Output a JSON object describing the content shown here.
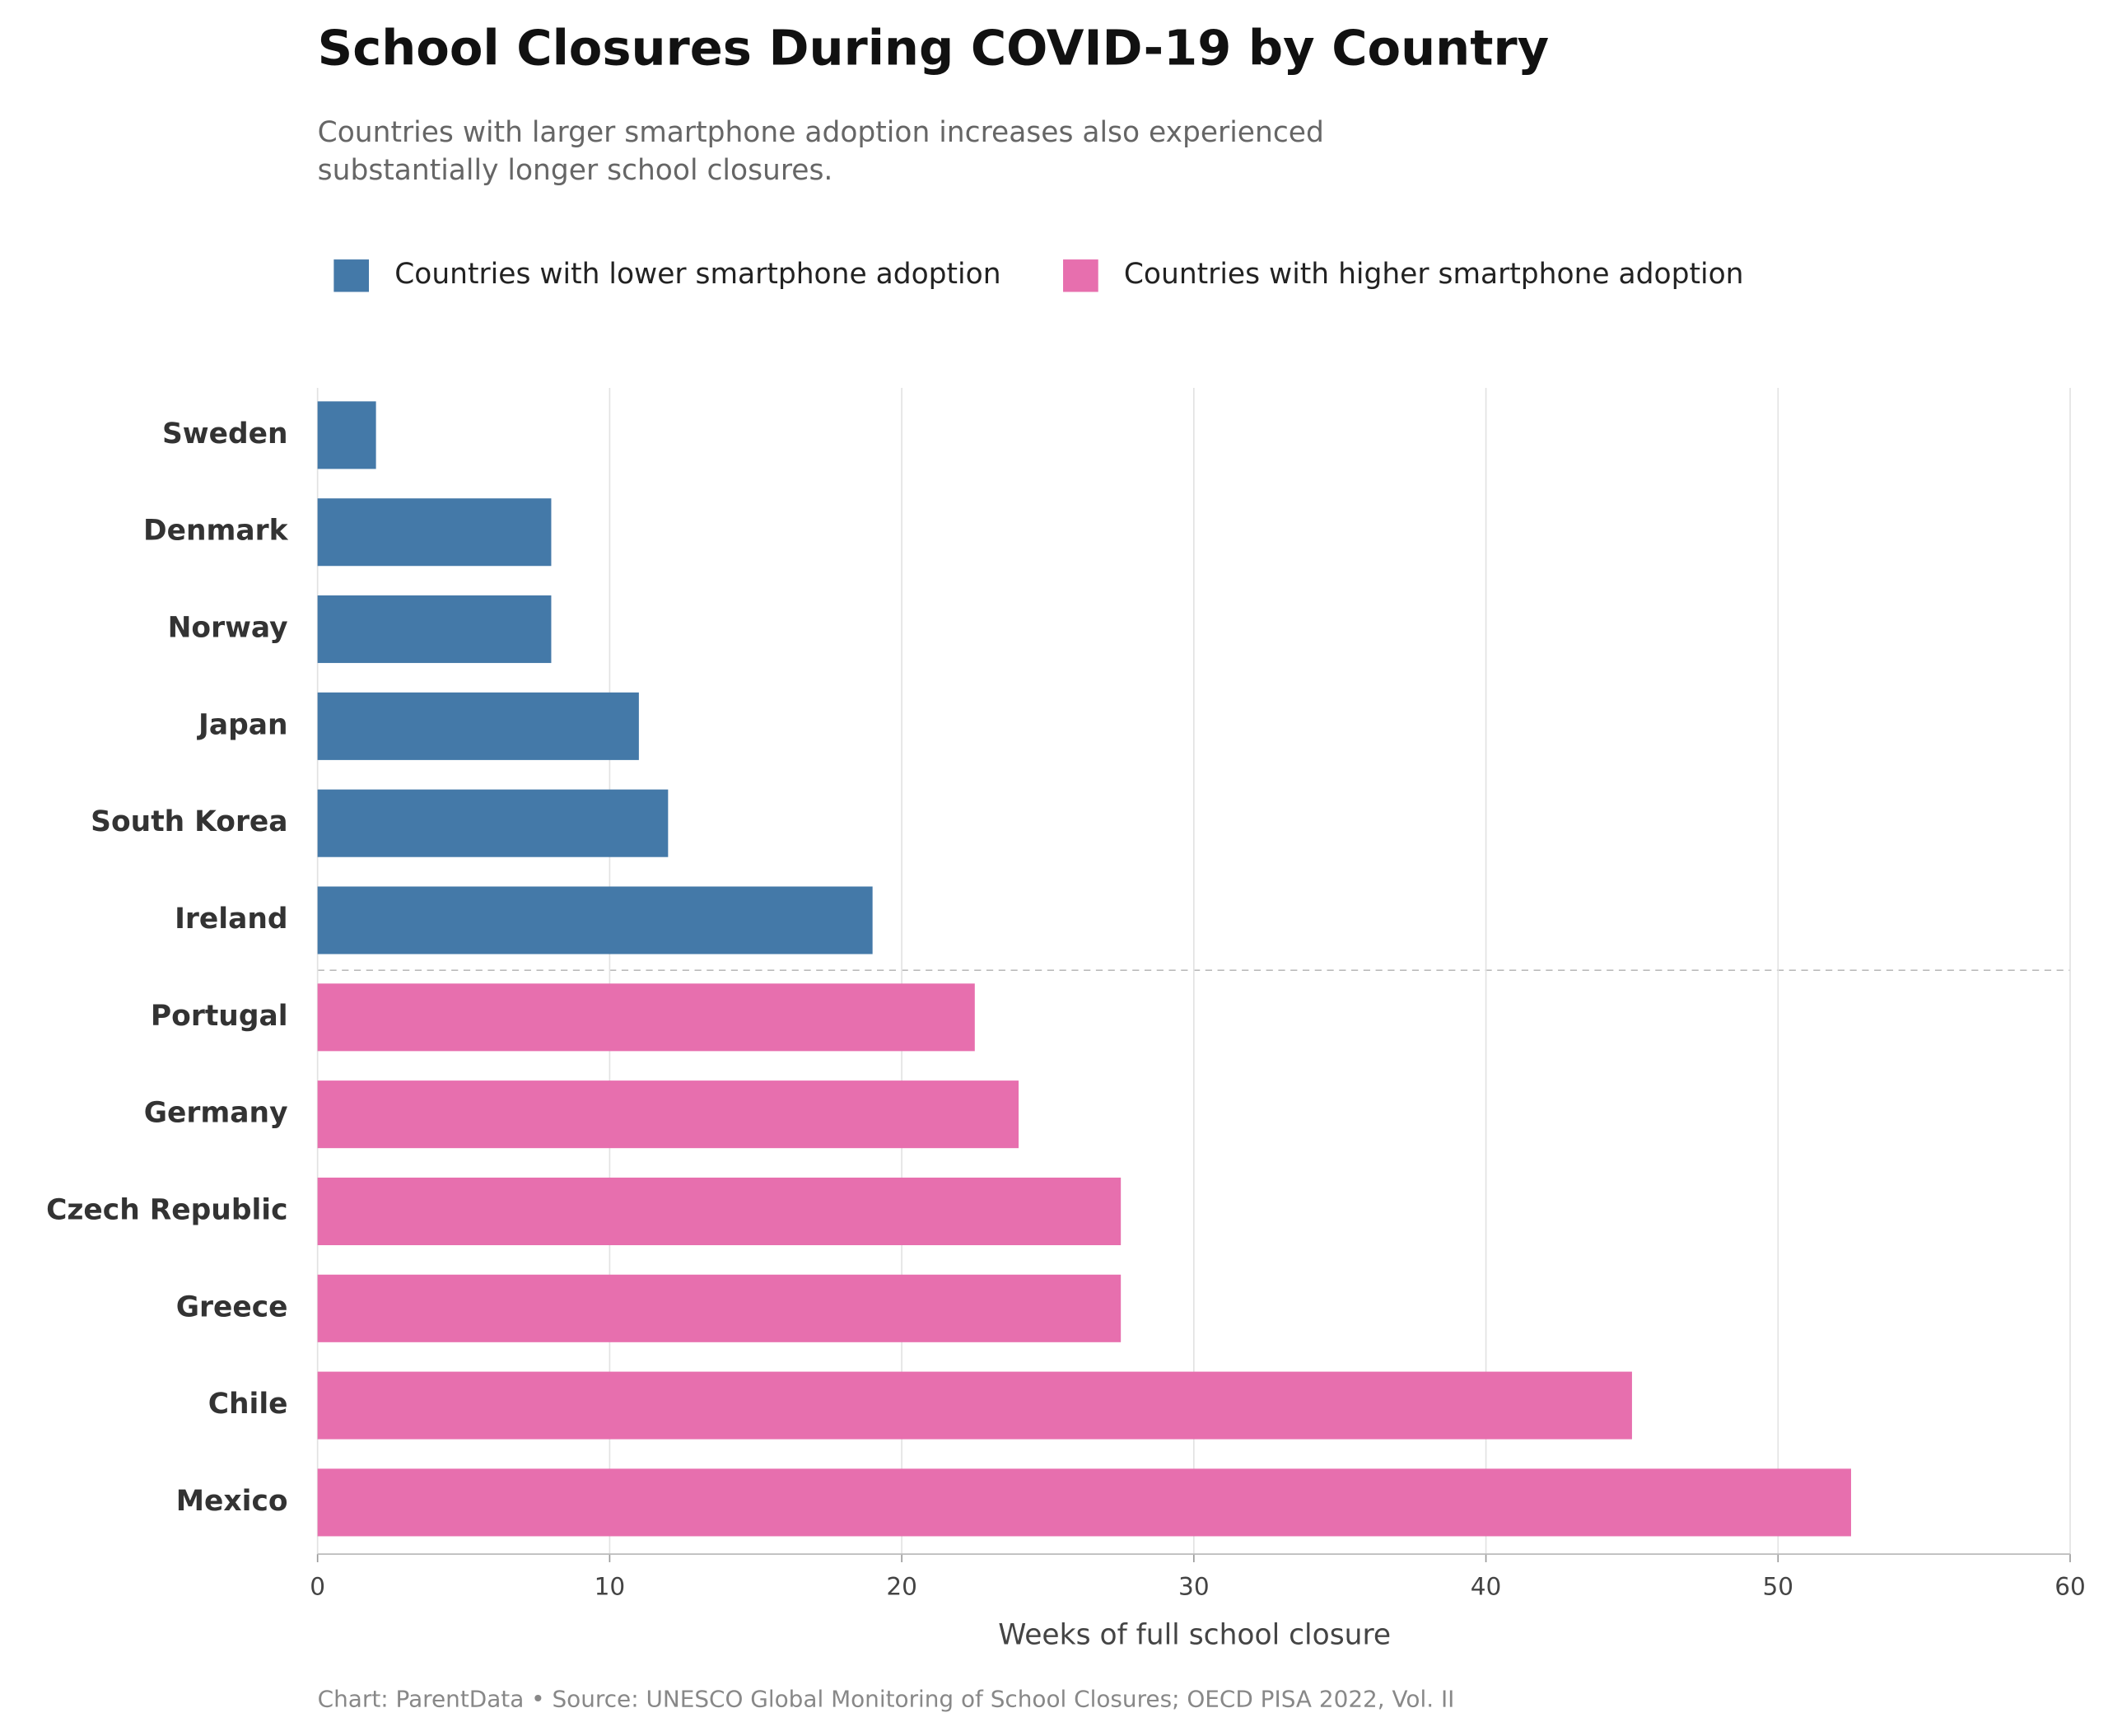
{
  "chart_data": {
    "type": "bar",
    "orientation": "horizontal",
    "title": "School Closures During COVID-19 by Country",
    "subtitle": [
      "Countries with larger smartphone adoption increases also experienced",
      "substantially longer school closures."
    ],
    "x_label": "Weeks of full school closure",
    "footer": "Chart: ParentData  •  Source: UNESCO Global Monitoring of School Closures; OECD PISA 2022, Vol. II",
    "categories": [
      "Sweden",
      "Denmark",
      "Norway",
      "Japan",
      "South Korea",
      "Ireland",
      "Portugal",
      "Germany",
      "Czech Republic",
      "Greece",
      "Chile",
      "Mexico"
    ],
    "series": [
      {
        "name": "Countries with lower smartphone adoption",
        "color": "#4479a8",
        "values": [
          2,
          8,
          8,
          11,
          12,
          19,
          null,
          null,
          null,
          null,
          null,
          null
        ]
      },
      {
        "name": "Countries with higher smartphone adoption",
        "color": "#e76fae",
        "values": [
          null,
          null,
          null,
          null,
          null,
          null,
          22.5,
          24,
          27.5,
          27.5,
          45,
          52.5
        ]
      }
    ],
    "xlim": [
      0,
      60
    ],
    "xticks": [
      0,
      10,
      20,
      30,
      40,
      50,
      60
    ],
    "grid": true,
    "legend": "top"
  }
}
